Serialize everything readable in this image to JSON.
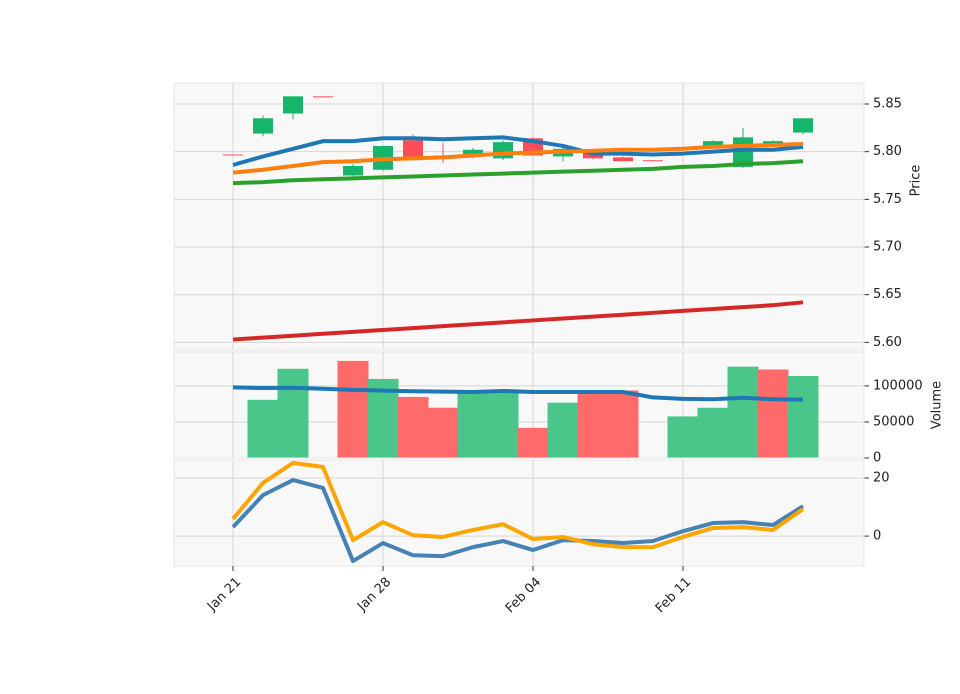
{
  "chart_data": [
    {
      "type": "candlestick",
      "axis_label": "Price",
      "ylim": [
        5.592,
        5.872
      ],
      "yticks": [
        {
          "value": 5.6,
          "label": "5.60"
        },
        5.65,
        {
          "value": 5.7,
          "label": "5.70"
        },
        5.75,
        {
          "value": 5.8,
          "label": "5.80"
        },
        5.85
      ],
      "up_color": "#17b46c",
      "down_color": "#ff4d58",
      "grid": true,
      "open": [
        5.797,
        5.819,
        5.84,
        5.858,
        5.775,
        5.781,
        5.812,
        5.796,
        5.796,
        5.793,
        5.814,
        5.795,
        5.801,
        5.794,
        5.791,
        5.802,
        5.805,
        5.784,
        5.807,
        5.82
      ],
      "high": [
        5.797,
        5.838,
        5.858,
        5.858,
        5.787,
        5.806,
        5.818,
        5.809,
        5.804,
        5.812,
        5.815,
        5.805,
        5.802,
        5.795,
        5.791,
        5.805,
        5.812,
        5.825,
        5.812,
        5.835
      ],
      "low": [
        5.796,
        5.816,
        5.834,
        5.857,
        5.771,
        5.78,
        5.793,
        5.788,
        5.793,
        5.791,
        5.796,
        5.79,
        5.792,
        5.79,
        5.79,
        5.801,
        5.804,
        5.783,
        5.806,
        5.818
      ],
      "close": [
        5.796,
        5.835,
        5.858,
        5.857,
        5.785,
        5.806,
        5.793,
        5.795,
        5.802,
        5.81,
        5.796,
        5.803,
        5.793,
        5.79,
        5.79,
        5.804,
        5.811,
        5.815,
        5.811,
        5.835
      ],
      "lines": [
        {
          "color": "#1f77b4",
          "values": [
            5.786,
            5.795,
            5.803,
            5.811,
            5.811,
            5.814,
            5.814,
            5.813,
            5.814,
            5.815,
            5.811,
            5.806,
            5.798,
            5.798,
            5.797,
            5.798,
            5.8,
            5.802,
            5.802,
            5.805
          ]
        },
        {
          "color": "#ff7f0e",
          "values": [
            5.778,
            5.781,
            5.785,
            5.789,
            5.79,
            5.792,
            5.793,
            5.794,
            5.796,
            5.798,
            5.799,
            5.8,
            5.801,
            5.802,
            5.802,
            5.803,
            5.805,
            5.806,
            5.807,
            5.808
          ]
        },
        {
          "color": "#2ca02c",
          "values": [
            5.767,
            5.768,
            5.77,
            5.771,
            5.772,
            5.773,
            5.774,
            5.775,
            5.776,
            5.777,
            5.778,
            5.779,
            5.78,
            5.781,
            5.782,
            5.784,
            5.785,
            5.787,
            5.788,
            5.79
          ]
        },
        {
          "color": "#d62728",
          "values": [
            5.603,
            5.605,
            5.607,
            5.609,
            5.611,
            5.613,
            5.615,
            5.617,
            5.619,
            5.621,
            5.623,
            5.625,
            5.627,
            5.629,
            5.631,
            5.633,
            5.635,
            5.637,
            5.639,
            5.642
          ]
        }
      ]
    },
    {
      "type": "bar",
      "axis_label": "Volume",
      "ylim": [
        0,
        147000
      ],
      "yticks": [
        0,
        50000,
        100000
      ],
      "grid": true,
      "values": [
        0,
        80000,
        123000,
        0,
        134000,
        109000,
        84000,
        69000,
        93000,
        93000,
        41000,
        76000,
        93000,
        93000,
        0,
        57000,
        69000,
        126000,
        122000,
        113000
      ],
      "colors": [
        "#4ac68a",
        "#4ac68a",
        "#4ac68a",
        "#4ac68a",
        "#ff6b6b",
        "#4ac68a",
        "#ff6b6b",
        "#ff6b6b",
        "#4ac68a",
        "#4ac68a",
        "#ff6b6b",
        "#4ac68a",
        "#ff6b6b",
        "#ff6b6b",
        "#4ac68a",
        "#4ac68a",
        "#4ac68a",
        "#4ac68a",
        "#ff6b6b",
        "#4ac68a"
      ],
      "lines": [
        {
          "color": "#1f77b4",
          "values": [
            98000,
            97000,
            97500,
            96000,
            94500,
            93500,
            92500,
            92000,
            91500,
            93000,
            91500,
            91500,
            91500,
            91500,
            84000,
            82000,
            81500,
            83500,
            81500,
            81000
          ]
        }
      ]
    },
    {
      "type": "line",
      "ylim": [
        -10.3,
        26.2
      ],
      "yticks": [
        0,
        20
      ],
      "grid": true,
      "categories": [
        "Jan 21",
        null,
        null,
        null,
        null,
        "Jan 28",
        null,
        null,
        null,
        null,
        "Feb 04",
        null,
        null,
        null,
        null,
        "Feb 11",
        null,
        null,
        null,
        null
      ],
      "series": [
        {
          "color": "#4682b4",
          "values": [
            3.1,
            14.1,
            19.3,
            16.6,
            -8.6,
            -2.4,
            -6.6,
            -6.9,
            -3.8,
            -1.7,
            -4.8,
            -1.4,
            -1.7,
            -2.4,
            -1.7,
            1.7,
            4.5,
            4.8,
            3.8,
            10.3
          ]
        },
        {
          "color": "#ffa500",
          "values": [
            5.9,
            18.3,
            25.2,
            23.8,
            -1.4,
            4.8,
            0.3,
            -0.3,
            2.1,
            4.1,
            -1.0,
            -0.3,
            -2.8,
            -3.8,
            -3.8,
            -0.3,
            2.8,
            3.1,
            2.1,
            9.3
          ]
        }
      ]
    }
  ]
}
